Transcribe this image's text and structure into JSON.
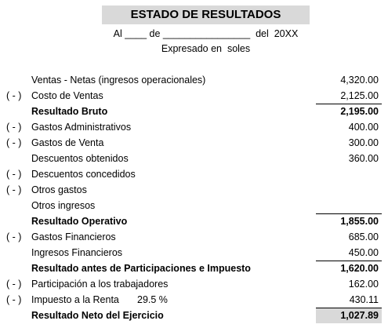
{
  "header": {
    "title": "ESTADO DE RESULTADOS",
    "date_line": "Al ____ de ________________  del  20XX",
    "subtitle": "Expresado en  soles"
  },
  "rows": [
    {
      "label": "Ventas - Netas (ingresos operacionales)",
      "value": "4,320.00"
    },
    {
      "prefix": "( - )",
      "label": "Costo de Ventas",
      "value": "2,125.00"
    },
    {
      "label": "Resultado Bruto",
      "value": "2,195.00",
      "bold": true
    },
    {
      "prefix": "( - )",
      "label": "Gastos Administrativos",
      "value": "400.00"
    },
    {
      "prefix": "( - )",
      "label": "Gastos de Venta",
      "value": "300.00"
    },
    {
      "label": "Descuentos obtenidos",
      "value": "360.00"
    },
    {
      "prefix": "( - )",
      "label": "Descuentos concedidos"
    },
    {
      "prefix": "( - )",
      "label": "Otros gastos"
    },
    {
      "label": "Otros ingresos"
    },
    {
      "label": "Resultado Operativo",
      "value": "1,855.00",
      "bold": true
    },
    {
      "prefix": "( - )",
      "label": "Gastos Financieros",
      "value": "685.00"
    },
    {
      "label": "Ingresos Financieros",
      "value": "450.00"
    },
    {
      "label": "Resultado antes de Participaciones e Impuesto",
      "value": "1,620.00",
      "bold": true
    },
    {
      "prefix": "( - )",
      "label": "Participación a los trabajadores",
      "value": "162.00"
    },
    {
      "prefix": "( - )",
      "label": "Impuesto a la Renta",
      "rate": "29.5 %",
      "value": "430.11"
    },
    {
      "label": "Resultado Neto del Ejercicio",
      "value": "1,027.89",
      "bold": true,
      "highlight": true
    }
  ]
}
